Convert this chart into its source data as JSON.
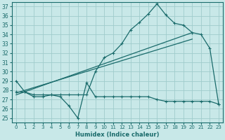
{
  "xlabel": "Humidex (Indice chaleur)",
  "bg_color": "#c8e8e8",
  "grid_color": "#a0cccc",
  "line_color": "#1a6b6b",
  "xlim": [
    -0.5,
    23.5
  ],
  "ylim": [
    24.5,
    37.5
  ],
  "xticks": [
    0,
    1,
    2,
    3,
    4,
    5,
    6,
    7,
    8,
    9,
    10,
    11,
    12,
    13,
    14,
    15,
    16,
    17,
    18,
    19,
    20,
    21,
    22,
    23
  ],
  "yticks": [
    25,
    26,
    27,
    28,
    29,
    30,
    31,
    32,
    33,
    34,
    35,
    36,
    37
  ],
  "curve_zigzag_x": [
    0,
    1,
    2,
    3,
    4,
    5,
    6,
    7,
    8,
    9,
    10,
    11,
    12,
    13,
    14,
    15,
    16,
    17,
    18,
    19,
    20,
    21,
    22,
    23
  ],
  "curve_zigzag_y": [
    29.0,
    27.8,
    27.3,
    27.3,
    27.5,
    27.3,
    26.3,
    25.0,
    28.8,
    27.3,
    27.3,
    27.3,
    27.3,
    27.3,
    27.3,
    27.3,
    27.0,
    26.8,
    26.8,
    26.8,
    26.8,
    26.8,
    26.8,
    26.5
  ],
  "curve_main_x": [
    0,
    1,
    2,
    3,
    4,
    5,
    6,
    7,
    8,
    9,
    10,
    11,
    12,
    13,
    14,
    15,
    16,
    17,
    18,
    19,
    20,
    21,
    22,
    23
  ],
  "curve_main_y": [
    27.8,
    27.8,
    27.5,
    27.5,
    27.5,
    27.5,
    27.5,
    27.5,
    27.5,
    30.0,
    31.5,
    32.0,
    33.0,
    34.5,
    35.3,
    36.2,
    37.3,
    36.1,
    35.2,
    35.0,
    34.2,
    34.0,
    32.5,
    26.5
  ],
  "trend1_x": [
    0,
    20
  ],
  "trend1_y": [
    27.7,
    33.5
  ],
  "trend2_x": [
    0,
    20
  ],
  "trend2_y": [
    27.5,
    34.2
  ]
}
